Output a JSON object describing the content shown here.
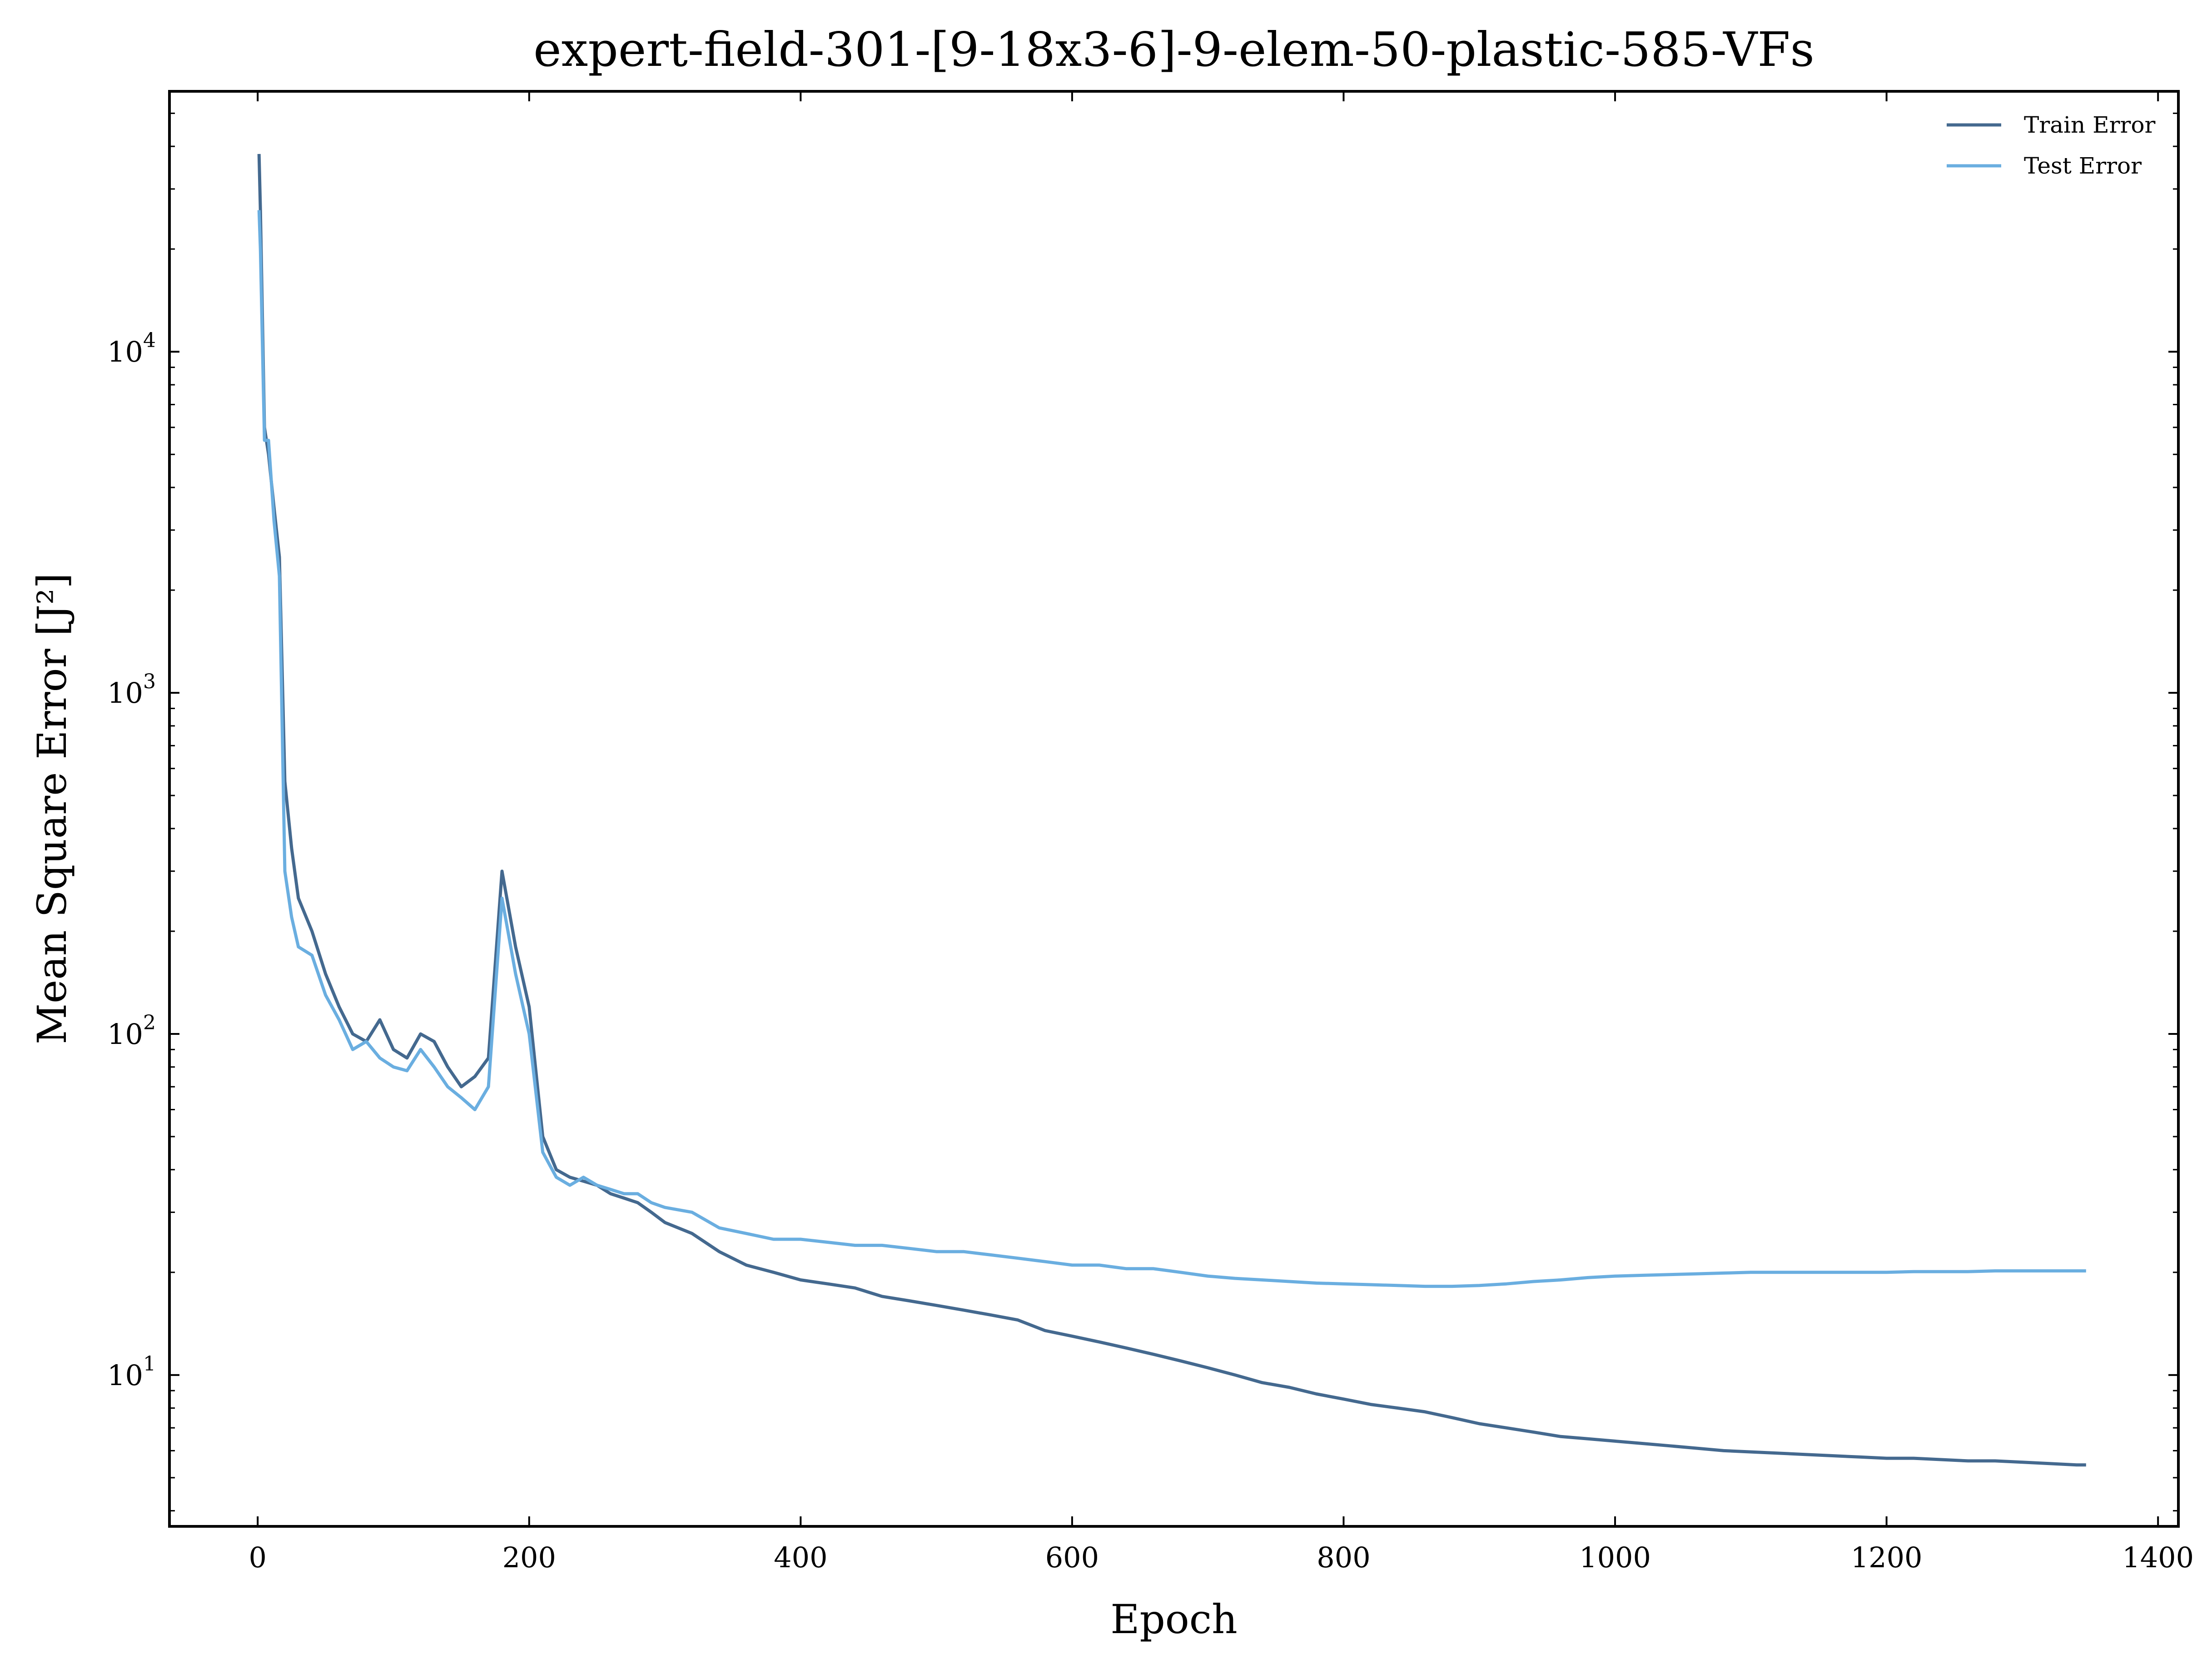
{
  "chart_data": {
    "type": "line",
    "title": "expert-field-301-[9-18x3-6]-9-elem-50-plastic-585-VFs",
    "xlabel": "Epoch",
    "ylabel": "Mean Square Error [J²]",
    "yscale": "log",
    "xlim": [
      -65,
      1415
    ],
    "ylim": [
      3.6,
      58000
    ],
    "grid": false,
    "legend_position": "top-right",
    "x_ticks": [
      0,
      200,
      400,
      600,
      800,
      1000,
      1200,
      1400
    ],
    "y_ticks": [
      {
        "value": 10,
        "base": "10",
        "exp": "1"
      },
      {
        "value": 100,
        "base": "10",
        "exp": "2"
      },
      {
        "value": 1000,
        "base": "10",
        "exp": "3"
      },
      {
        "value": 10000,
        "base": "10",
        "exp": "4"
      }
    ],
    "series": [
      {
        "name": "Train Error",
        "color": "#44698f",
        "x": [
          1,
          2,
          5,
          8,
          12,
          16,
          20,
          25,
          30,
          40,
          50,
          60,
          70,
          80,
          90,
          100,
          110,
          120,
          130,
          140,
          150,
          160,
          170,
          180,
          190,
          200,
          210,
          220,
          230,
          240,
          250,
          260,
          270,
          280,
          290,
          300,
          320,
          340,
          360,
          380,
          400,
          420,
          440,
          460,
          480,
          500,
          520,
          540,
          560,
          580,
          600,
          620,
          640,
          660,
          680,
          700,
          720,
          740,
          760,
          780,
          800,
          820,
          840,
          860,
          880,
          900,
          920,
          940,
          960,
          980,
          1000,
          1020,
          1040,
          1060,
          1080,
          1100,
          1120,
          1140,
          1160,
          1180,
          1200,
          1220,
          1240,
          1260,
          1280,
          1300,
          1320,
          1340,
          1347
        ],
        "y": [
          38000,
          26000,
          6000,
          5000,
          3500,
          2500,
          550,
          350,
          250,
          200,
          150,
          120,
          100,
          95,
          110,
          90,
          85,
          100,
          95,
          80,
          70,
          75,
          85,
          300,
          180,
          120,
          50,
          40,
          38,
          37,
          36,
          34,
          33,
          32,
          30,
          28,
          26,
          23,
          21,
          20,
          19,
          18.5,
          18,
          17,
          16.5,
          16,
          15.5,
          15,
          14.5,
          13.5,
          13,
          12.5,
          12,
          11.5,
          11,
          10.5,
          10,
          9.5,
          9.2,
          8.8,
          8.5,
          8.2,
          8,
          7.8,
          7.5,
          7.2,
          7,
          6.8,
          6.6,
          6.5,
          6.4,
          6.3,
          6.2,
          6.1,
          6,
          5.95,
          5.9,
          5.85,
          5.8,
          5.75,
          5.7,
          5.7,
          5.65,
          5.6,
          5.6,
          5.55,
          5.5,
          5.45,
          5.45
        ]
      },
      {
        "name": "Test Error",
        "color": "#6aaee0",
        "x": [
          1,
          2,
          5,
          8,
          12,
          16,
          20,
          25,
          30,
          40,
          50,
          60,
          70,
          80,
          90,
          100,
          110,
          120,
          130,
          140,
          150,
          160,
          170,
          180,
          190,
          200,
          210,
          220,
          230,
          240,
          250,
          260,
          270,
          280,
          290,
          300,
          320,
          340,
          360,
          380,
          400,
          420,
          440,
          460,
          480,
          500,
          520,
          540,
          560,
          580,
          600,
          620,
          640,
          660,
          680,
          700,
          720,
          740,
          760,
          780,
          800,
          820,
          840,
          860,
          880,
          900,
          920,
          940,
          960,
          980,
          1000,
          1020,
          1040,
          1060,
          1080,
          1100,
          1120,
          1140,
          1160,
          1180,
          1200,
          1220,
          1240,
          1260,
          1280,
          1300,
          1320,
          1340,
          1347
        ],
        "y": [
          26000,
          20000,
          5500,
          5500,
          3200,
          2200,
          300,
          220,
          180,
          170,
          130,
          110,
          90,
          95,
          85,
          80,
          78,
          90,
          80,
          70,
          65,
          60,
          70,
          250,
          150,
          100,
          45,
          38,
          36,
          38,
          36,
          35,
          34,
          34,
          32,
          31,
          30,
          27,
          26,
          25,
          25,
          24.5,
          24,
          24,
          23.5,
          23,
          23,
          22.5,
          22,
          21.5,
          21,
          21,
          20.5,
          20.5,
          20,
          19.5,
          19.2,
          19,
          18.8,
          18.6,
          18.5,
          18.4,
          18.3,
          18.2,
          18.2,
          18.3,
          18.5,
          18.8,
          19,
          19.3,
          19.5,
          19.6,
          19.7,
          19.8,
          19.9,
          20,
          20,
          20,
          20,
          20,
          20,
          20.1,
          20.1,
          20.1,
          20.2,
          20.2,
          20.2,
          20.2,
          20.2
        ]
      }
    ]
  }
}
